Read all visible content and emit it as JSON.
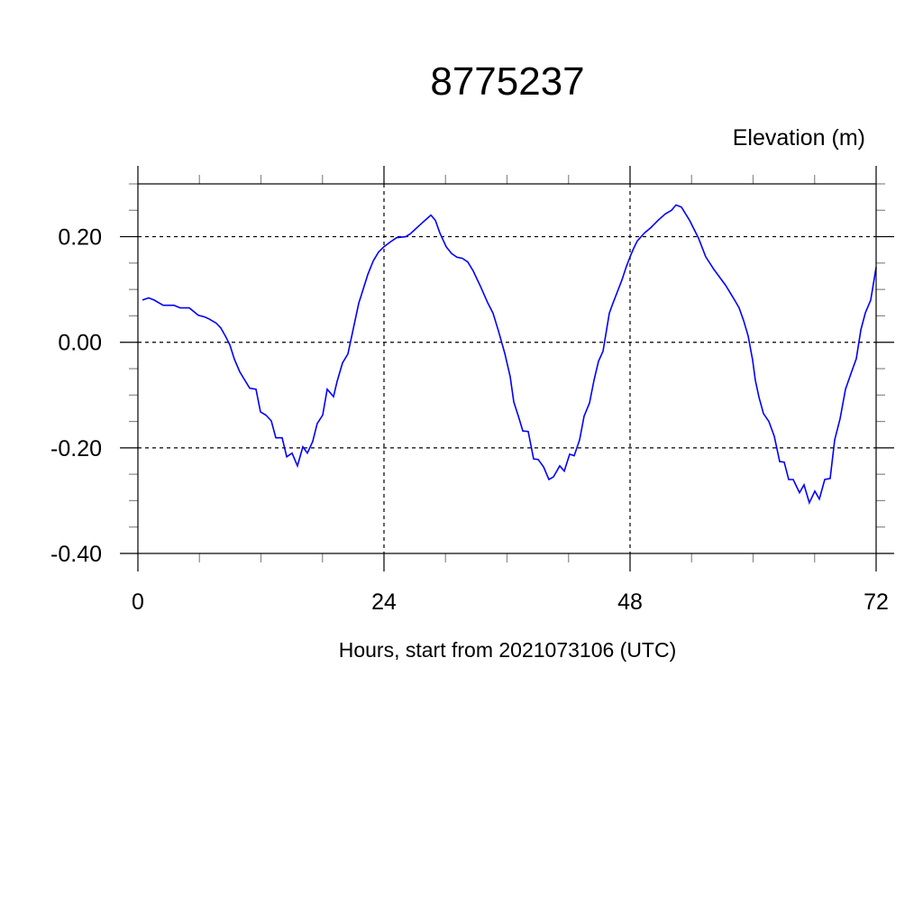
{
  "chart_data": {
    "type": "line",
    "title": "8775237",
    "ylabel_right_top": "Elevation (m)",
    "xlabel": "Hours, start from 2021073106 (UTC)",
    "xlim": [
      0,
      72
    ],
    "ylim": [
      -0.4,
      0.3
    ],
    "x_ticks": [
      0,
      24,
      48,
      72
    ],
    "x_tick_labels": [
      "0",
      "24",
      "48",
      "72"
    ],
    "x_minor_step": 6,
    "y_ticks": [
      -0.4,
      -0.2,
      0.0,
      0.2
    ],
    "y_tick_labels": [
      "-0.40",
      "-0.20",
      "0.00",
      "0.20"
    ],
    "y_minor_step": 0.05,
    "grid": true,
    "grid_style": "dashed",
    "line_color": "#0000ff",
    "series": [
      {
        "x": [
          0.44,
          1.05,
          1.58,
          2.46,
          2.9,
          3.52,
          4.13,
          5.01,
          5.89,
          6.51,
          6.95,
          7.65,
          8.09,
          8.53,
          8.97,
          9.41,
          9.93,
          10.9,
          11.52,
          11.96,
          12.48,
          13.01,
          13.45,
          14.07,
          14.51,
          15.03,
          15.56,
          16.09,
          16.53,
          17.05,
          17.49,
          18.02,
          18.46,
          19.08,
          19.43,
          19.96,
          20.48,
          21.1,
          21.54,
          21.98,
          22.42,
          22.95,
          23.47,
          24.0,
          24.62,
          25.23,
          26.11,
          26.55,
          27.43,
          28.57,
          29.01,
          29.45,
          30.07,
          30.59,
          31.12,
          31.65,
          32.18,
          32.7,
          33.41,
          34.11,
          34.64,
          35.16,
          35.78,
          36.31,
          36.66,
          37.19,
          37.54,
          38.07,
          38.59,
          39.03,
          39.56,
          40.09,
          40.53,
          41.14,
          41.58,
          42.11,
          42.55,
          43.08,
          43.52,
          44.04,
          44.48,
          44.92,
          45.36,
          45.98,
          46.33,
          46.77,
          47.21,
          47.65,
          48.09,
          48.35,
          48.7,
          49.41,
          50.02,
          50.73,
          51.43,
          52.04,
          52.48,
          53.01,
          53.8,
          54.68,
          55.38,
          56.18,
          57.32,
          58.2,
          58.64,
          59.08,
          59.52,
          59.96,
          60.22,
          60.57,
          61.01,
          61.54,
          62.07,
          62.59,
          63.03,
          63.47,
          63.91,
          64.53,
          64.97,
          65.49,
          66.02,
          66.46,
          66.99,
          67.52,
          67.96,
          68.48,
          69.01,
          69.63,
          70.07,
          70.51,
          70.95,
          71.47,
          72.0
        ],
        "y": [
          0.08,
          0.084,
          0.08,
          0.07,
          0.07,
          0.07,
          0.065,
          0.065,
          0.051,
          0.048,
          0.044,
          0.036,
          0.027,
          0.012,
          -0.005,
          -0.032,
          -0.056,
          -0.087,
          -0.089,
          -0.132,
          -0.138,
          -0.149,
          -0.181,
          -0.181,
          -0.217,
          -0.21,
          -0.234,
          -0.198,
          -0.21,
          -0.188,
          -0.154,
          -0.138,
          -0.089,
          -0.103,
          -0.074,
          -0.039,
          -0.022,
          0.034,
          0.074,
          0.101,
          0.128,
          0.154,
          0.171,
          0.181,
          0.19,
          0.198,
          0.2,
          0.205,
          0.221,
          0.241,
          0.231,
          0.207,
          0.181,
          0.168,
          0.161,
          0.159,
          0.152,
          0.135,
          0.106,
          0.075,
          0.055,
          0.022,
          -0.021,
          -0.065,
          -0.113,
          -0.145,
          -0.168,
          -0.169,
          -0.221,
          -0.222,
          -0.236,
          -0.26,
          -0.255,
          -0.234,
          -0.244,
          -0.212,
          -0.215,
          -0.185,
          -0.14,
          -0.115,
          -0.072,
          -0.036,
          -0.017,
          0.055,
          0.074,
          0.096,
          0.118,
          0.144,
          0.166,
          0.178,
          0.192,
          0.207,
          0.217,
          0.231,
          0.243,
          0.25,
          0.26,
          0.256,
          0.231,
          0.197,
          0.162,
          0.138,
          0.108,
          0.08,
          0.065,
          0.041,
          0.012,
          -0.034,
          -0.072,
          -0.104,
          -0.135,
          -0.15,
          -0.178,
          -0.226,
          -0.227,
          -0.26,
          -0.26,
          -0.285,
          -0.27,
          -0.304,
          -0.282,
          -0.297,
          -0.26,
          -0.258,
          -0.185,
          -0.145,
          -0.089,
          -0.055,
          -0.031,
          0.024,
          0.056,
          0.08,
          0.142
        ]
      }
    ]
  }
}
